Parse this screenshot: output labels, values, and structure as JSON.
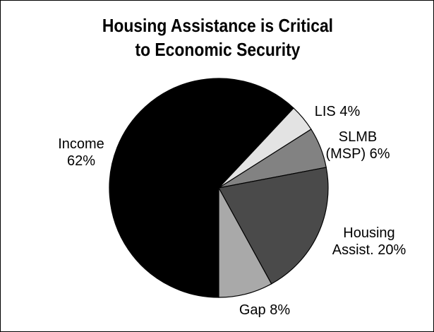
{
  "chart_data": {
    "type": "pie",
    "title_lines": [
      "Housing Assistance is Critical",
      "to Economic Security"
    ],
    "slices": [
      {
        "label_lines": [
          "Income",
          "62%"
        ],
        "value": 62,
        "color": "#000000"
      },
      {
        "label_lines": [
          "LIS 4%"
        ],
        "value": 4,
        "color": "#e3e3e3"
      },
      {
        "label_lines": [
          "SLMB",
          "(MSP) 6%"
        ],
        "value": 6,
        "color": "#828282"
      },
      {
        "label_lines": [
          "Housing",
          "Assist. 20%"
        ],
        "value": 20,
        "color": "#4a4a4a"
      },
      {
        "label_lines": [
          "Gap 8%"
        ],
        "value": 8,
        "color": "#a9a9a9"
      }
    ],
    "start_angle_deg": 180,
    "direction": "clockwise"
  }
}
